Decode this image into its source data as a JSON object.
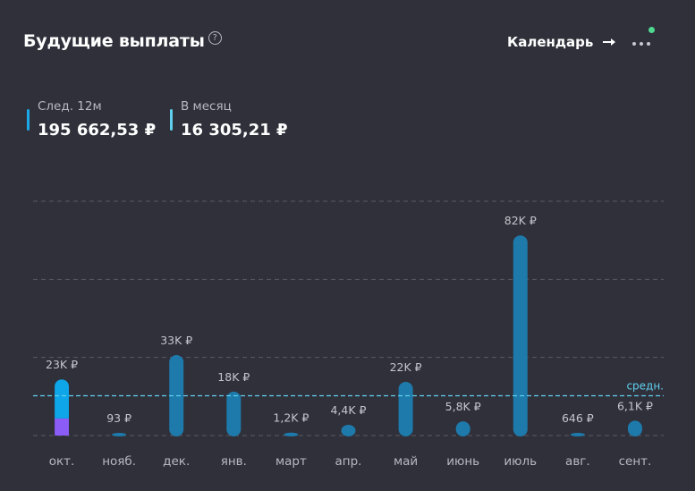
{
  "header": {
    "title": "Будущие выплаты",
    "help_icon": "question-circle-icon",
    "calendar_label": "Календарь",
    "calendar_icon": "arrow-right-icon",
    "more_icon": "more-dots-icon"
  },
  "stats": [
    {
      "label": "След. 12м",
      "value": "195 662,53 ₽",
      "color": "#1aa8e8"
    },
    {
      "label": "В месяц",
      "value": "16 305,21 ₽",
      "color": "#5fd0ec"
    }
  ],
  "chart_data": {
    "type": "bar",
    "categories": [
      "окт.",
      "нояб.",
      "дек.",
      "янв.",
      "март",
      "апр.",
      "май",
      "июнь",
      "июль",
      "авг.",
      "сент."
    ],
    "values": [
      23000,
      93,
      33000,
      18000,
      1200,
      4400,
      22000,
      5800,
      82000,
      646,
      6100
    ],
    "value_labels": [
      "23K ₽",
      "93 ₽",
      "33K ₽",
      "18K ₽",
      "1,2K ₽",
      "4,4K ₽",
      "22K ₽",
      "5,8K ₽",
      "82K ₽",
      "646 ₽",
      "6,1K ₽"
    ],
    "first_bar_segments": [
      {
        "value": 7000,
        "color": "#8b5cf6"
      },
      {
        "value": 16000,
        "color": "#0ea5e9"
      }
    ],
    "bar_color": "#1d7aab",
    "average": {
      "value": 16305.21,
      "label": "средн.",
      "color": "#5fd0ec"
    },
    "ylim": [
      0,
      96000
    ],
    "grid": true
  }
}
